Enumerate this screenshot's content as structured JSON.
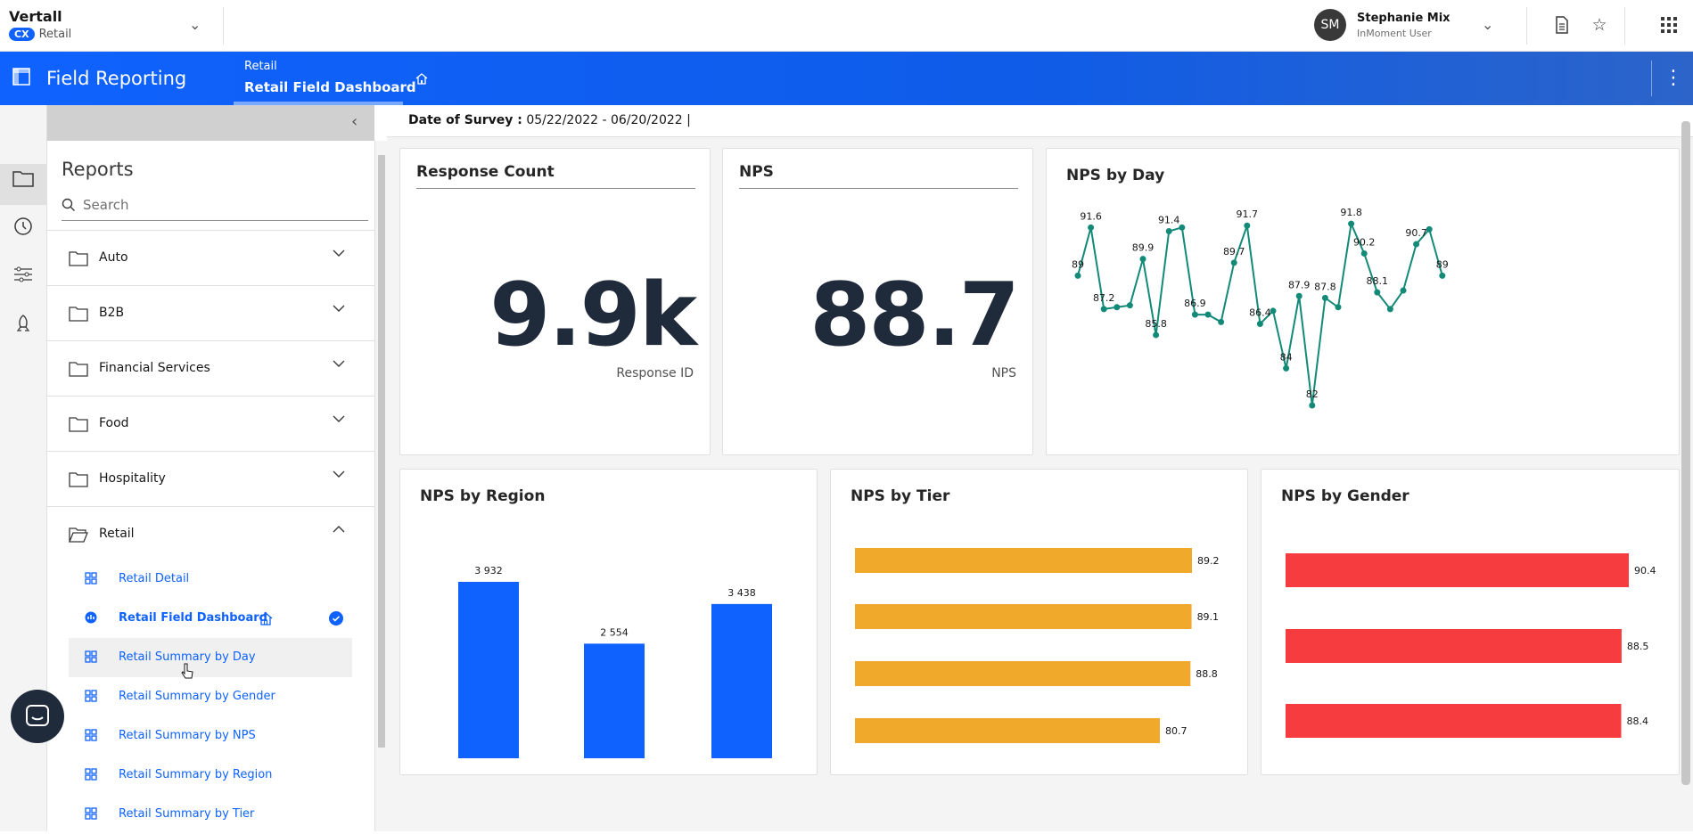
{
  "org": {
    "name": "Vertall",
    "badge": "CX",
    "sub": "Retail"
  },
  "user": {
    "initials": "SM",
    "name": "Stephanie Mix",
    "role": "InMoment User"
  },
  "app": {
    "title": "Field Reporting"
  },
  "breadcrumb": {
    "parent": "Retail",
    "current": "Retail Field Dashboard"
  },
  "filter": {
    "label": "Date of Survey :",
    "value": "05/22/2022 - 06/20/2022",
    "separator": "|"
  },
  "sidebar": {
    "title": "Reports",
    "search_placeholder": "Search",
    "folders": [
      {
        "label": "Auto"
      },
      {
        "label": "B2B"
      },
      {
        "label": "Financial Services"
      },
      {
        "label": "Food"
      },
      {
        "label": "Hospitality"
      },
      {
        "label": "Retail"
      }
    ],
    "items": [
      {
        "label": "Retail Detail"
      },
      {
        "label": "Retail Field Dashboard"
      },
      {
        "label": "Retail Summary by Day"
      },
      {
        "label": "Retail Summary by Gender"
      },
      {
        "label": "Retail Summary by NPS"
      },
      {
        "label": "Retail Summary by Region"
      },
      {
        "label": "Retail Summary by Tier"
      }
    ]
  },
  "cards": {
    "response_count": {
      "title": "Response Count",
      "value": "9.9k",
      "label": "Response ID"
    },
    "nps": {
      "title": "NPS",
      "value": "88.7",
      "label": "NPS"
    },
    "nps_by_day": {
      "title": "NPS by Day"
    },
    "nps_by_region": {
      "title": "NPS by Region"
    },
    "nps_by_tier": {
      "title": "NPS by Tier"
    },
    "nps_by_gender": {
      "title": "NPS by Gender"
    }
  },
  "colors": {
    "accent": "#0f62fe",
    "line": "#138a78",
    "tier": "#f1a92b",
    "gender": "#f63c3f",
    "region": "#0f62fe"
  },
  "chart_data": [
    {
      "type": "line",
      "title": "NPS by Day",
      "values": [
        89,
        91.6,
        87.2,
        87.3,
        87.4,
        89.9,
        85.8,
        91.4,
        91.6,
        86.9,
        86.9,
        86.5,
        89.7,
        91.7,
        86.4,
        87.1,
        84,
        87.9,
        82,
        87.8,
        87.3,
        91.8,
        90.2,
        88.1,
        87.2,
        88.2,
        90.7,
        91.5,
        89
      ],
      "labels": [
        "89",
        "91.6",
        "87.2",
        "",
        "",
        "89.9",
        "85.8",
        "91.4",
        "",
        "86.9",
        "",
        "",
        "89.7",
        "91.7",
        "86.4",
        "",
        "84",
        "87.9",
        "82",
        "87.8",
        "",
        "91.8",
        "90.2",
        "88.1",
        "",
        "",
        "90.7",
        "",
        "89"
      ]
    },
    {
      "type": "bar",
      "title": "NPS by Region",
      "values": [
        3932,
        2554,
        3438
      ],
      "labels": [
        "3 932",
        "2 554",
        "3 438"
      ]
    },
    {
      "type": "bar",
      "title": "NPS by Tier",
      "orientation": "horizontal",
      "values": [
        89.2,
        89.1,
        88.8,
        80.7
      ],
      "labels": [
        "89.2",
        "89.1",
        "88.8",
        "80.7"
      ]
    },
    {
      "type": "bar",
      "title": "NPS by Gender",
      "orientation": "horizontal",
      "values": [
        90.4,
        88.5,
        88.4
      ],
      "labels": [
        "90.4",
        "88.5",
        "88.4"
      ]
    }
  ]
}
